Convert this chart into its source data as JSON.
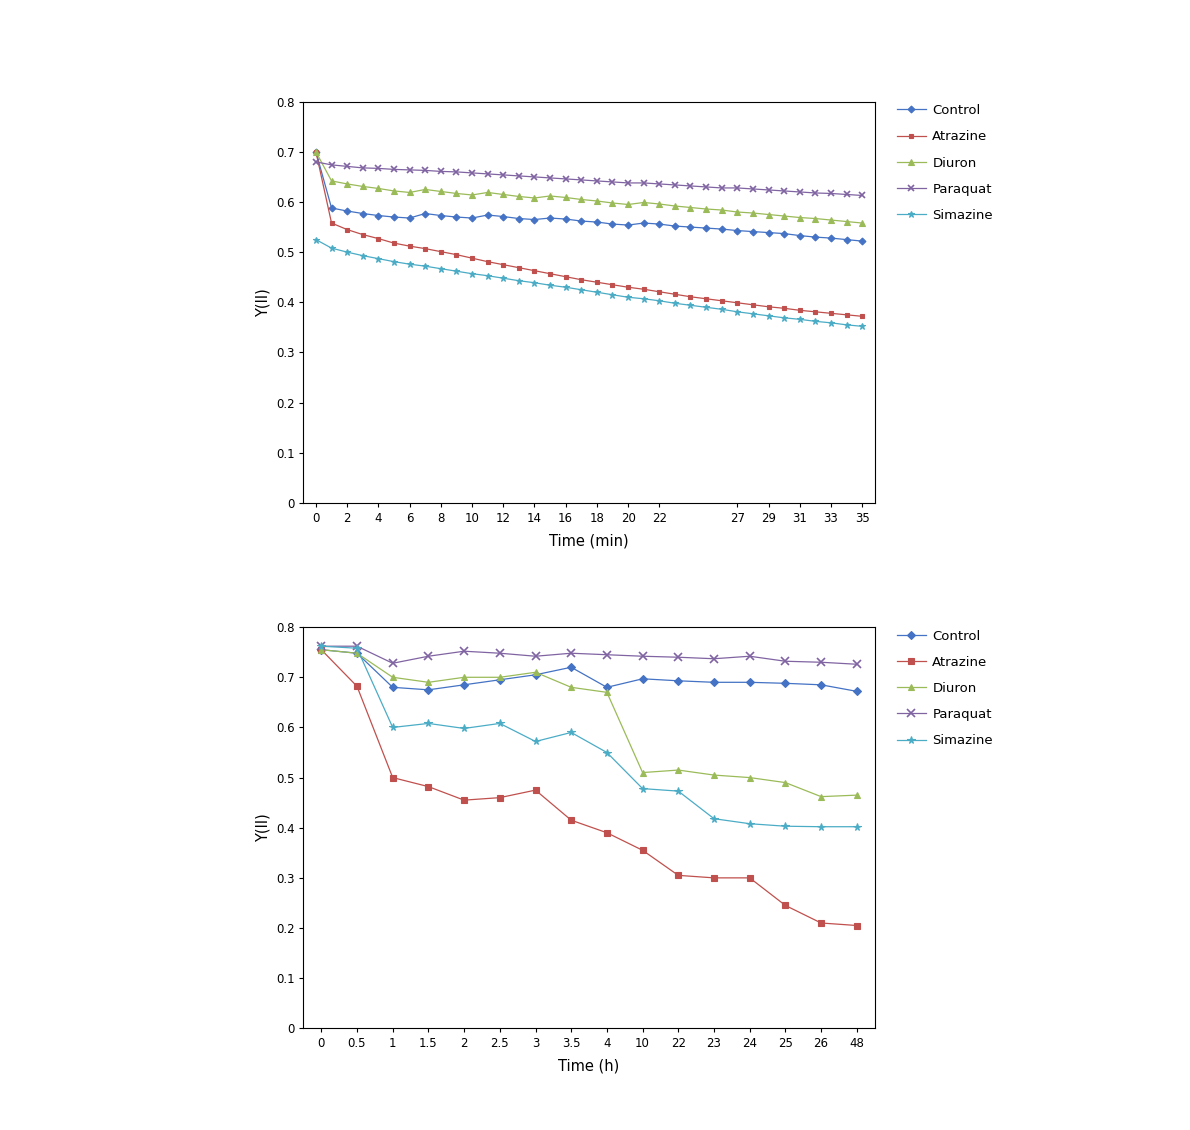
{
  "plot1": {
    "xlabel": "Time (min)",
    "ylabel": "Y(II)",
    "ylim": [
      0,
      0.8
    ],
    "yticks": [
      0,
      0.1,
      0.2,
      0.3,
      0.4,
      0.5,
      0.6,
      0.7,
      0.8
    ],
    "xtick_labels": [
      "0",
      "2",
      "4",
      "6",
      "8",
      "10",
      "12",
      "14",
      "16",
      "18",
      "20",
      "22",
      "27",
      "29",
      "31",
      "33",
      "35"
    ],
    "xtick_positions": [
      0,
      2,
      4,
      6,
      8,
      10,
      12,
      14,
      16,
      18,
      20,
      22,
      27,
      29,
      31,
      33,
      35
    ],
    "series": {
      "Control": {
        "color": "#4472C4",
        "marker": "D",
        "x": [
          0,
          1,
          2,
          3,
          4,
          5,
          6,
          7,
          8,
          9,
          10,
          11,
          12,
          13,
          14,
          15,
          16,
          17,
          18,
          19,
          20,
          21,
          22,
          23,
          24,
          25,
          26,
          27,
          28,
          29,
          30,
          31,
          32,
          33,
          34,
          35
        ],
        "y": [
          0.7,
          0.588,
          0.582,
          0.577,
          0.573,
          0.57,
          0.568,
          0.577,
          0.573,
          0.57,
          0.568,
          0.574,
          0.571,
          0.567,
          0.565,
          0.568,
          0.566,
          0.562,
          0.56,
          0.556,
          0.554,
          0.558,
          0.556,
          0.552,
          0.55,
          0.548,
          0.546,
          0.543,
          0.541,
          0.539,
          0.537,
          0.533,
          0.53,
          0.528,
          0.525,
          0.522
        ]
      },
      "Atrazine": {
        "color": "#C0504D",
        "marker": "s",
        "x": [
          0,
          1,
          2,
          3,
          4,
          5,
          6,
          7,
          8,
          9,
          10,
          11,
          12,
          13,
          14,
          15,
          16,
          17,
          18,
          19,
          20,
          21,
          22,
          23,
          24,
          25,
          26,
          27,
          28,
          29,
          30,
          31,
          32,
          33,
          34,
          35
        ],
        "y": [
          0.7,
          0.558,
          0.545,
          0.535,
          0.527,
          0.518,
          0.512,
          0.507,
          0.501,
          0.495,
          0.488,
          0.481,
          0.475,
          0.469,
          0.463,
          0.457,
          0.451,
          0.445,
          0.44,
          0.435,
          0.43,
          0.426,
          0.421,
          0.416,
          0.411,
          0.407,
          0.403,
          0.399,
          0.395,
          0.391,
          0.388,
          0.384,
          0.381,
          0.378,
          0.375,
          0.372
        ]
      },
      "Diuron": {
        "color": "#9BBB59",
        "marker": "^",
        "x": [
          0,
          1,
          2,
          3,
          4,
          5,
          6,
          7,
          8,
          9,
          10,
          11,
          12,
          13,
          14,
          15,
          16,
          17,
          18,
          19,
          20,
          21,
          22,
          23,
          24,
          25,
          26,
          27,
          28,
          29,
          30,
          31,
          32,
          33,
          34,
          35
        ],
        "y": [
          0.7,
          0.642,
          0.636,
          0.631,
          0.627,
          0.622,
          0.619,
          0.625,
          0.621,
          0.617,
          0.614,
          0.619,
          0.615,
          0.611,
          0.608,
          0.612,
          0.609,
          0.605,
          0.602,
          0.598,
          0.595,
          0.599,
          0.596,
          0.592,
          0.589,
          0.586,
          0.584,
          0.58,
          0.578,
          0.575,
          0.572,
          0.569,
          0.567,
          0.564,
          0.561,
          0.558
        ]
      },
      "Paraquat": {
        "color": "#8064A2",
        "marker": "x",
        "x": [
          0,
          1,
          2,
          3,
          4,
          5,
          6,
          7,
          8,
          9,
          10,
          11,
          12,
          13,
          14,
          15,
          16,
          17,
          18,
          19,
          20,
          21,
          22,
          23,
          24,
          25,
          26,
          27,
          28,
          29,
          30,
          31,
          32,
          33,
          34,
          35
        ],
        "y": [
          0.68,
          0.674,
          0.671,
          0.668,
          0.667,
          0.665,
          0.664,
          0.663,
          0.661,
          0.66,
          0.658,
          0.656,
          0.654,
          0.652,
          0.65,
          0.648,
          0.646,
          0.644,
          0.642,
          0.64,
          0.638,
          0.638,
          0.636,
          0.634,
          0.632,
          0.63,
          0.628,
          0.628,
          0.626,
          0.624,
          0.622,
          0.62,
          0.618,
          0.617,
          0.615,
          0.613
        ]
      },
      "Simazine": {
        "color": "#4BACC6",
        "marker": "*",
        "x": [
          0,
          1,
          2,
          3,
          4,
          5,
          6,
          7,
          8,
          9,
          10,
          11,
          12,
          13,
          14,
          15,
          16,
          17,
          18,
          19,
          20,
          21,
          22,
          23,
          24,
          25,
          26,
          27,
          28,
          29,
          30,
          31,
          32,
          33,
          34,
          35
        ],
        "y": [
          0.525,
          0.508,
          0.5,
          0.493,
          0.487,
          0.481,
          0.476,
          0.472,
          0.467,
          0.462,
          0.457,
          0.453,
          0.448,
          0.443,
          0.439,
          0.434,
          0.43,
          0.425,
          0.42,
          0.415,
          0.41,
          0.407,
          0.403,
          0.398,
          0.394,
          0.39,
          0.386,
          0.381,
          0.377,
          0.373,
          0.369,
          0.366,
          0.362,
          0.359,
          0.355,
          0.352
        ]
      }
    }
  },
  "plot2": {
    "xlabel": "Time (h)",
    "ylabel": "Y(II)",
    "ylim": [
      0,
      0.8
    ],
    "yticks": [
      0,
      0.1,
      0.2,
      0.3,
      0.4,
      0.5,
      0.6,
      0.7,
      0.8
    ],
    "xtick_labels": [
      "0",
      "0.5",
      "1",
      "1.5",
      "2",
      "2.5",
      "3",
      "3.5",
      "4",
      "10",
      "22",
      "23",
      "24",
      "25",
      "26",
      "48"
    ],
    "series": {
      "Control": {
        "color": "#4472C4",
        "marker": "D",
        "y": [
          0.755,
          0.748,
          0.68,
          0.675,
          0.685,
          0.695,
          0.705,
          0.72,
          0.68,
          0.697,
          0.693,
          0.69,
          0.69,
          0.688,
          0.685,
          0.672
        ]
      },
      "Atrazine": {
        "color": "#C0504D",
        "marker": "s",
        "y": [
          0.755,
          0.682,
          0.5,
          0.482,
          0.455,
          0.46,
          0.475,
          0.415,
          0.39,
          0.355,
          0.305,
          0.3,
          0.3,
          0.245,
          0.21,
          0.205
        ]
      },
      "Diuron": {
        "color": "#9BBB59",
        "marker": "^",
        "y": [
          0.755,
          0.748,
          0.7,
          0.69,
          0.7,
          0.7,
          0.71,
          0.68,
          0.67,
          0.51,
          0.515,
          0.505,
          0.5,
          0.49,
          0.462,
          0.465
        ]
      },
      "Paraquat": {
        "color": "#8064A2",
        "marker": "x",
        "y": [
          0.762,
          0.762,
          0.728,
          0.742,
          0.752,
          0.748,
          0.742,
          0.748,
          0.745,
          0.742,
          0.74,
          0.737,
          0.742,
          0.732,
          0.73,
          0.726
        ]
      },
      "Simazine": {
        "color": "#4BACC6",
        "marker": "*",
        "y": [
          0.762,
          0.758,
          0.6,
          0.608,
          0.598,
          0.608,
          0.572,
          0.59,
          0.55,
          0.478,
          0.473,
          0.418,
          0.408,
          0.403,
          0.402,
          0.402
        ]
      }
    }
  },
  "legend_order": [
    "Control",
    "Atrazine",
    "Diuron",
    "Paraquat",
    "Simazine"
  ],
  "background_color": "#ffffff"
}
